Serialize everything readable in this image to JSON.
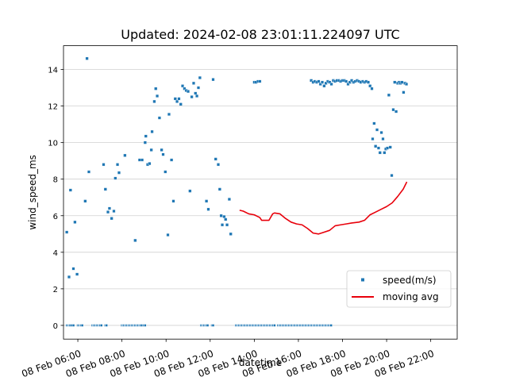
{
  "chart_data": {
    "type": "scatter",
    "title": "Updated: 2024-02-08 23:01:11.224097 UTC",
    "xlabel": "datetime",
    "ylabel": "wind_speed_ms",
    "xlim": [
      "2024-02-08 05:21",
      "2024-02-08 23:12"
    ],
    "ylim": [
      -0.75,
      15.3
    ],
    "grid": "horizontal",
    "legend_position": "lower-right",
    "x_ticks": [
      {
        "t": "2024-02-08 06:00",
        "label": "08 Feb 06:00"
      },
      {
        "t": "2024-02-08 08:00",
        "label": "08 Feb 08:00"
      },
      {
        "t": "2024-02-08 10:00",
        "label": "08 Feb 10:00"
      },
      {
        "t": "2024-02-08 12:00",
        "label": "08 Feb 12:00"
      },
      {
        "t": "2024-02-08 14:00",
        "label": "08 Feb 14:00"
      },
      {
        "t": "2024-02-08 16:00",
        "label": "08 Feb 16:00"
      },
      {
        "t": "2024-02-08 18:00",
        "label": "08 Feb 18:00"
      },
      {
        "t": "2024-02-08 20:00",
        "label": "08 Feb 20:00"
      },
      {
        "t": "2024-02-08 22:00",
        "label": "08 Feb 22:00"
      }
    ],
    "y_ticks": [
      0,
      2,
      4,
      6,
      8,
      10,
      12,
      14
    ],
    "series": [
      {
        "name": "speed(m/s)",
        "kind": "scatter",
        "color": "#1f77b4",
        "points": [
          [
            "2024-02-08 05:30",
            5.1
          ],
          [
            "2024-02-08 05:36",
            2.65
          ],
          [
            "2024-02-08 05:40",
            7.4
          ],
          [
            "2024-02-08 05:48",
            3.1
          ],
          [
            "2024-02-08 05:52",
            5.65
          ],
          [
            "2024-02-08 05:58",
            2.8
          ],
          [
            "2024-02-08 06:20",
            6.8
          ],
          [
            "2024-02-08 06:25",
            14.6
          ],
          [
            "2024-02-08 06:30",
            8.4
          ],
          [
            "2024-02-08 07:10",
            8.8
          ],
          [
            "2024-02-08 07:15",
            7.45
          ],
          [
            "2024-02-08 07:22",
            6.2
          ],
          [
            "2024-02-08 07:26",
            6.4
          ],
          [
            "2024-02-08 07:32",
            5.85
          ],
          [
            "2024-02-08 07:38",
            6.25
          ],
          [
            "2024-02-08 07:42",
            8.05
          ],
          [
            "2024-02-08 07:48",
            8.8
          ],
          [
            "2024-02-08 07:52",
            8.35
          ],
          [
            "2024-02-08 08:08",
            9.3
          ],
          [
            "2024-02-08 08:36",
            4.65
          ],
          [
            "2024-02-08 08:48",
            9.05
          ],
          [
            "2024-02-08 08:55",
            9.05
          ],
          [
            "2024-02-08 09:03",
            10.0
          ],
          [
            "2024-02-08 09:05",
            10.35
          ],
          [
            "2024-02-08 09:10",
            8.8
          ],
          [
            "2024-02-08 09:15",
            8.85
          ],
          [
            "2024-02-08 09:20",
            9.6
          ],
          [
            "2024-02-08 09:22",
            10.6
          ],
          [
            "2024-02-08 09:28",
            12.25
          ],
          [
            "2024-02-08 09:32",
            12.95
          ],
          [
            "2024-02-08 09:36",
            12.55
          ],
          [
            "2024-02-08 09:42",
            11.35
          ],
          [
            "2024-02-08 09:48",
            9.6
          ],
          [
            "2024-02-08 09:52",
            9.35
          ],
          [
            "2024-02-08 09:58",
            8.4
          ],
          [
            "2024-02-08 10:05",
            4.95
          ],
          [
            "2024-02-08 10:08",
            11.55
          ],
          [
            "2024-02-08 10:15",
            9.05
          ],
          [
            "2024-02-08 10:20",
            6.8
          ],
          [
            "2024-02-08 10:25",
            12.4
          ],
          [
            "2024-02-08 10:30",
            12.25
          ],
          [
            "2024-02-08 10:35",
            12.4
          ],
          [
            "2024-02-08 10:40",
            12.1
          ],
          [
            "2024-02-08 10:45",
            13.1
          ],
          [
            "2024-02-08 10:50",
            12.95
          ],
          [
            "2024-02-08 10:55",
            12.85
          ],
          [
            "2024-02-08 11:00",
            12.8
          ],
          [
            "2024-02-08 11:05",
            7.35
          ],
          [
            "2024-02-08 11:10",
            12.5
          ],
          [
            "2024-02-08 11:15",
            13.25
          ],
          [
            "2024-02-08 11:20",
            12.7
          ],
          [
            "2024-02-08 11:24",
            12.55
          ],
          [
            "2024-02-08 11:28",
            13.0
          ],
          [
            "2024-02-08 11:32",
            13.55
          ],
          [
            "2024-02-08 11:50",
            6.8
          ],
          [
            "2024-02-08 11:55",
            6.35
          ],
          [
            "2024-02-08 12:08",
            13.45
          ],
          [
            "2024-02-08 12:15",
            9.1
          ],
          [
            "2024-02-08 12:22",
            8.8
          ],
          [
            "2024-02-08 12:26",
            7.45
          ],
          [
            "2024-02-08 12:30",
            6.0
          ],
          [
            "2024-02-08 12:33",
            5.5
          ],
          [
            "2024-02-08 12:38",
            5.95
          ],
          [
            "2024-02-08 12:42",
            5.8
          ],
          [
            "2024-02-08 12:46",
            5.5
          ],
          [
            "2024-02-08 12:52",
            6.9
          ],
          [
            "2024-02-08 12:56",
            5.0
          ],
          [
            "2024-02-08 14:00",
            13.3
          ],
          [
            "2024-02-08 14:05",
            13.3
          ],
          [
            "2024-02-08 14:10",
            13.35
          ],
          [
            "2024-02-08 14:15",
            13.35
          ],
          [
            "2024-02-08 16:35",
            13.4
          ],
          [
            "2024-02-08 16:40",
            13.3
          ],
          [
            "2024-02-08 16:45",
            13.35
          ],
          [
            "2024-02-08 16:50",
            13.3
          ],
          [
            "2024-02-08 16:55",
            13.35
          ],
          [
            "2024-02-08 17:00",
            13.2
          ],
          [
            "2024-02-08 17:05",
            13.3
          ],
          [
            "2024-02-08 17:10",
            13.1
          ],
          [
            "2024-02-08 17:15",
            13.25
          ],
          [
            "2024-02-08 17:20",
            13.35
          ],
          [
            "2024-02-08 17:25",
            13.3
          ],
          [
            "2024-02-08 17:30",
            13.2
          ],
          [
            "2024-02-08 17:35",
            13.4
          ],
          [
            "2024-02-08 17:40",
            13.35
          ],
          [
            "2024-02-08 17:45",
            13.4
          ],
          [
            "2024-02-08 17:50",
            13.4
          ],
          [
            "2024-02-08 17:55",
            13.35
          ],
          [
            "2024-02-08 18:00",
            13.4
          ],
          [
            "2024-02-08 18:05",
            13.4
          ],
          [
            "2024-02-08 18:10",
            13.35
          ],
          [
            "2024-02-08 18:15",
            13.2
          ],
          [
            "2024-02-08 18:20",
            13.3
          ],
          [
            "2024-02-08 18:25",
            13.4
          ],
          [
            "2024-02-08 18:30",
            13.3
          ],
          [
            "2024-02-08 18:35",
            13.35
          ],
          [
            "2024-02-08 18:40",
            13.4
          ],
          [
            "2024-02-08 18:45",
            13.35
          ],
          [
            "2024-02-08 18:50",
            13.3
          ],
          [
            "2024-02-08 18:55",
            13.35
          ],
          [
            "2024-02-08 19:00",
            13.3
          ],
          [
            "2024-02-08 19:05",
            13.35
          ],
          [
            "2024-02-08 19:10",
            13.3
          ],
          [
            "2024-02-08 19:15",
            13.1
          ],
          [
            "2024-02-08 19:20",
            12.95
          ],
          [
            "2024-02-08 19:22",
            10.2
          ],
          [
            "2024-02-08 19:26",
            11.05
          ],
          [
            "2024-02-08 19:30",
            9.8
          ],
          [
            "2024-02-08 19:34",
            10.7
          ],
          [
            "2024-02-08 19:38",
            9.7
          ],
          [
            "2024-02-08 19:42",
            9.45
          ],
          [
            "2024-02-08 19:46",
            10.55
          ],
          [
            "2024-02-08 19:50",
            10.2
          ],
          [
            "2024-02-08 19:54",
            9.45
          ],
          [
            "2024-02-08 19:58",
            9.65
          ],
          [
            "2024-02-08 20:02",
            9.7
          ],
          [
            "2024-02-08 20:06",
            12.6
          ],
          [
            "2024-02-08 20:10",
            9.75
          ],
          [
            "2024-02-08 20:14",
            8.2
          ],
          [
            "2024-02-08 20:18",
            11.8
          ],
          [
            "2024-02-08 20:22",
            13.3
          ],
          [
            "2024-02-08 20:26",
            11.7
          ],
          [
            "2024-02-08 20:30",
            13.25
          ],
          [
            "2024-02-08 20:34",
            13.3
          ],
          [
            "2024-02-08 20:38",
            13.25
          ],
          [
            "2024-02-08 20:42",
            13.3
          ],
          [
            "2024-02-08 20:46",
            12.75
          ],
          [
            "2024-02-08 20:50",
            13.25
          ],
          [
            "2024-02-08 20:54",
            13.2
          ]
        ],
        "zero_runs": [
          [
            "2024-02-08 05:30",
            "2024-02-08 05:42"
          ],
          [
            "2024-02-08 05:48",
            "2024-02-08 05:50"
          ],
          [
            "2024-02-08 06:00",
            "2024-02-08 06:12"
          ],
          [
            "2024-02-08 06:40",
            "2024-02-08 07:05"
          ],
          [
            "2024-02-08 07:15",
            "2024-02-08 07:20"
          ],
          [
            "2024-02-08 08:00",
            "2024-02-08 08:55"
          ],
          [
            "2024-02-08 09:00",
            "2024-02-08 09:05"
          ],
          [
            "2024-02-08 11:35",
            "2024-02-08 11:55"
          ],
          [
            "2024-02-08 12:05",
            "2024-02-08 12:10"
          ],
          [
            "2024-02-08 13:10",
            "2024-02-08 14:55"
          ],
          [
            "2024-02-08 15:05",
            "2024-02-08 17:30"
          ]
        ]
      },
      {
        "name": "moving avg",
        "kind": "line",
        "color": "#e8000b",
        "points": [
          [
            "2024-02-08 13:20",
            6.3
          ],
          [
            "2024-02-08 13:30",
            6.25
          ],
          [
            "2024-02-08 13:45",
            6.1
          ],
          [
            "2024-02-08 14:00",
            6.05
          ],
          [
            "2024-02-08 14:15",
            5.9
          ],
          [
            "2024-02-08 14:20",
            5.75
          ],
          [
            "2024-02-08 14:40",
            5.75
          ],
          [
            "2024-02-08 14:50",
            6.1
          ],
          [
            "2024-02-08 14:55",
            6.15
          ],
          [
            "2024-02-08 15:10",
            6.1
          ],
          [
            "2024-02-08 15:25",
            5.85
          ],
          [
            "2024-02-08 15:40",
            5.65
          ],
          [
            "2024-02-08 15:55",
            5.55
          ],
          [
            "2024-02-08 16:10",
            5.5
          ],
          [
            "2024-02-08 16:25",
            5.3
          ],
          [
            "2024-02-08 16:40",
            5.05
          ],
          [
            "2024-02-08 16:55",
            5.0
          ],
          [
            "2024-02-08 17:10",
            5.1
          ],
          [
            "2024-02-08 17:25",
            5.2
          ],
          [
            "2024-02-08 17:40",
            5.45
          ],
          [
            "2024-02-08 17:55",
            5.5
          ],
          [
            "2024-02-08 18:10",
            5.55
          ],
          [
            "2024-02-08 18:25",
            5.6
          ],
          [
            "2024-02-08 18:45",
            5.65
          ],
          [
            "2024-02-08 19:00",
            5.75
          ],
          [
            "2024-02-08 19:15",
            6.05
          ],
          [
            "2024-02-08 19:30",
            6.2
          ],
          [
            "2024-02-08 19:45",
            6.35
          ],
          [
            "2024-02-08 20:00",
            6.5
          ],
          [
            "2024-02-08 20:15",
            6.7
          ],
          [
            "2024-02-08 20:30",
            7.05
          ],
          [
            "2024-02-08 20:45",
            7.45
          ],
          [
            "2024-02-08 20:55",
            7.85
          ]
        ]
      }
    ]
  }
}
